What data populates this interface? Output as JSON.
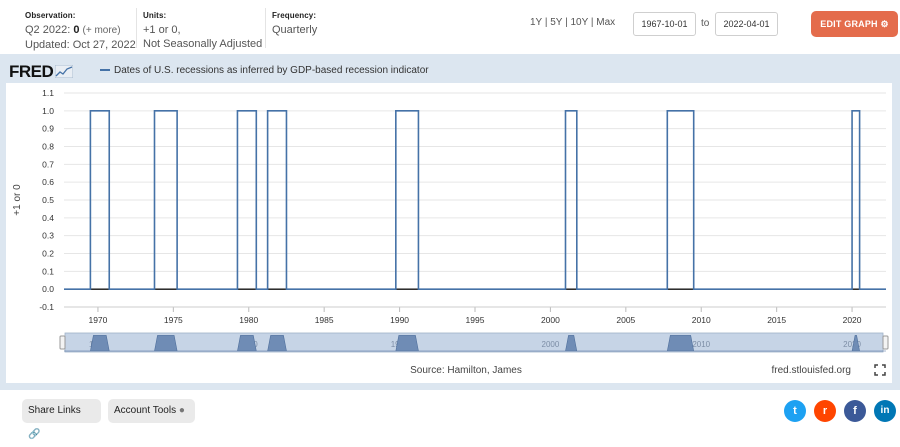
{
  "header": {
    "observation_label": "Observation:",
    "observation_period": "Q2 2022:",
    "observation_value": "0",
    "observation_more": "(+ more)",
    "updated": "Updated: Oct 27, 2022",
    "units_label": "Units:",
    "units_line1": "+1 or 0,",
    "units_line2": "Not Seasonally Adjusted",
    "frequency_label": "Frequency:",
    "frequency_value": "Quarterly",
    "range_1y": "1Y",
    "range_5y": "5Y",
    "range_10y": "10Y",
    "range_max": "Max",
    "range_sep": "|",
    "start_date": "1967-10-01",
    "to_label": "to",
    "end_date": "2022-04-01",
    "edit_button": "EDIT GRAPH"
  },
  "graph": {
    "logo": "FRED",
    "source": "Source: Hamilton, James",
    "site": "fred.stlouisfed.org"
  },
  "chart_data": {
    "type": "line",
    "title": "Dates of U.S. recessions as inferred by GDP-based recession indicator",
    "series": [
      {
        "name": "Dates of U.S. recessions as inferred by GDP-based recession indicator",
        "color": "#4572a7",
        "recession_periods": [
          [
            "1969-07-01",
            "1970-10-01"
          ],
          [
            "1973-10-01",
            "1975-04-01"
          ],
          [
            "1979-04-01",
            "1980-07-01"
          ],
          [
            "1981-04-01",
            "1982-07-01"
          ],
          [
            "1989-10-01",
            "1991-04-01"
          ],
          [
            "2001-01-01",
            "2001-10-01"
          ],
          [
            "2007-10-01",
            "2009-07-01"
          ],
          [
            "2020-01-01",
            "2020-07-01"
          ]
        ]
      }
    ],
    "xlabel": "",
    "ylabel": "+1 or 0",
    "xlim": [
      "1967-10-01",
      "2022-04-01"
    ],
    "ylim": [
      -0.1,
      1.1
    ],
    "y_ticks": [
      "1.1",
      "1.0",
      "0.9",
      "0.8",
      "0.7",
      "0.6",
      "0.5",
      "0.4",
      "0.3",
      "0.2",
      "0.1",
      "0.0",
      "-0.1"
    ],
    "x_ticks": [
      "1970",
      "1975",
      "1980",
      "1985",
      "1990",
      "1995",
      "2000",
      "2005",
      "2010",
      "2015",
      "2020"
    ],
    "navigator_labels": [
      "1970",
      "1980",
      "1990",
      "2000",
      "2010",
      "2020"
    ],
    "grid": true,
    "legend_placement": "top-left"
  },
  "footer": {
    "share_links": "Share Links",
    "account_tools": "Account Tools",
    "social": [
      "twitter",
      "reddit",
      "facebook",
      "linkedin"
    ]
  }
}
